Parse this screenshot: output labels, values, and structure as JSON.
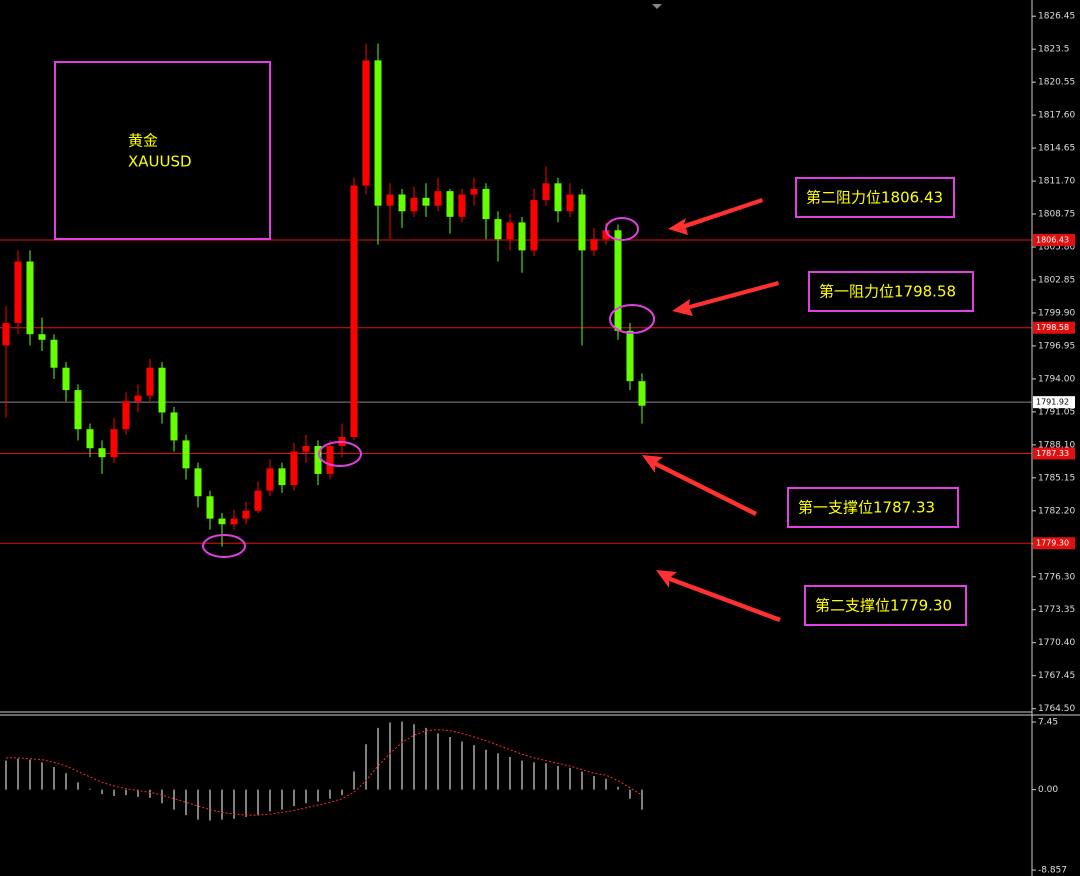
{
  "chart_data": [
    {
      "type": "candlestick",
      "symbol_lines": [
        "黄金",
        "XAUUSD"
      ],
      "up_color": "#ff0000",
      "down_color": "#66ff00",
      "ylim": [
        1764.2,
        1827.9
      ],
      "yticks": [
        1826.45,
        1823.5,
        1820.55,
        {
          "value": 1817.6,
          "label": "1817.60"
        },
        1814.65,
        {
          "value": 1811.7,
          "label": "1811.70"
        },
        1808.75,
        {
          "value": 1805.8,
          "label": "1805.80"
        },
        1802.85,
        {
          "value": 1799.9,
          "label": "1799.90"
        },
        1796.95,
        {
          "value": 1794,
          "label": "1794.00"
        },
        1791.05,
        {
          "value": 1788.1,
          "label": "1788.10"
        },
        1785.15,
        {
          "value": 1782.2,
          "label": "1782.20"
        },
        1779.25,
        {
          "value": 1776.3,
          "label": "1776.30"
        },
        1773.35,
        {
          "value": 1770.4,
          "label": "1770.40"
        },
        1767.45,
        {
          "value": 1764.5,
          "label": "1764.50"
        }
      ],
      "last_price": 1791.92,
      "levels": [
        {
          "value": 1806.43,
          "label": "1806.43",
          "note": "第二阻力位1806.43"
        },
        {
          "value": 1798.58,
          "label": "1798.58",
          "note": "第一阻力位1798.58"
        },
        {
          "value": 1787.33,
          "label": "1787.33",
          "note": "第一支撑位1787.33"
        },
        {
          "value": 1779.3,
          "label": "1779.30",
          "note": "第二支撑位1779.30"
        }
      ],
      "candles": [
        [
          1797.0,
          1800.5,
          1790.5,
          1799.0
        ],
        [
          1799.0,
          1805.5,
          1798.0,
          1804.5
        ],
        [
          1804.5,
          1805.5,
          1797.0,
          1798.0
        ],
        [
          1798.0,
          1799.5,
          1796.5,
          1797.5
        ],
        [
          1797.5,
          1798.0,
          1794.0,
          1795.0
        ],
        [
          1795.0,
          1795.5,
          1792.0,
          1793.0
        ],
        [
          1793.0,
          1793.5,
          1788.5,
          1789.5
        ],
        [
          1789.5,
          1790.0,
          1787.0,
          1787.8
        ],
        [
          1787.8,
          1788.5,
          1785.5,
          1787.0
        ],
        [
          1787.0,
          1790.5,
          1786.5,
          1789.5
        ],
        [
          1789.5,
          1792.8,
          1789.0,
          1792.0
        ],
        [
          1792.0,
          1793.5,
          1791.0,
          1792.5
        ],
        [
          1792.5,
          1795.8,
          1792.0,
          1795.0
        ],
        [
          1795.0,
          1795.5,
          1790.0,
          1791.0
        ],
        [
          1791.0,
          1791.5,
          1787.5,
          1788.5
        ],
        [
          1788.5,
          1789.0,
          1785.0,
          1786.0
        ],
        [
          1786.0,
          1786.5,
          1782.5,
          1783.5
        ],
        [
          1783.5,
          1784.0,
          1780.5,
          1781.5
        ],
        [
          1781.5,
          1782.0,
          1779.0,
          1781.0
        ],
        [
          1781.0,
          1782.3,
          1780.5,
          1781.5
        ],
        [
          1781.5,
          1783.0,
          1781.0,
          1782.2
        ],
        [
          1782.2,
          1784.8,
          1782.0,
          1784.0
        ],
        [
          1784.0,
          1786.8,
          1783.5,
          1786.0
        ],
        [
          1786.0,
          1786.5,
          1783.8,
          1784.5
        ],
        [
          1784.5,
          1788.3,
          1784.0,
          1787.5
        ],
        [
          1787.5,
          1789.0,
          1786.5,
          1788.0
        ],
        [
          1788.0,
          1788.5,
          1784.5,
          1785.5
        ],
        [
          1785.5,
          1788.5,
          1785.0,
          1788.0
        ],
        [
          1788.0,
          1790.0,
          1787.0,
          1788.8
        ],
        [
          1788.8,
          1812.0,
          1788.5,
          1811.3
        ],
        [
          1811.3,
          1824.0,
          1810.5,
          1822.5
        ],
        [
          1822.5,
          1824.0,
          1806.0,
          1809.5
        ],
        [
          1809.5,
          1811.5,
          1806.5,
          1810.5
        ],
        [
          1810.5,
          1811.0,
          1807.5,
          1809.0
        ],
        [
          1809.0,
          1811.2,
          1808.5,
          1810.2
        ],
        [
          1810.2,
          1811.5,
          1808.5,
          1809.5
        ],
        [
          1809.5,
          1812.0,
          1809.0,
          1810.8
        ],
        [
          1810.8,
          1811.0,
          1807.0,
          1808.5
        ],
        [
          1808.5,
          1811.0,
          1808.0,
          1810.5
        ],
        [
          1810.5,
          1812.0,
          1809.5,
          1811.0
        ],
        [
          1811.0,
          1811.5,
          1806.5,
          1808.3
        ],
        [
          1808.3,
          1809.0,
          1804.5,
          1806.5
        ],
        [
          1806.5,
          1808.8,
          1805.5,
          1808.0
        ],
        [
          1808.0,
          1808.5,
          1803.5,
          1805.5
        ],
        [
          1805.5,
          1811.0,
          1805.0,
          1810.0
        ],
        [
          1810.0,
          1813.0,
          1809.5,
          1811.5
        ],
        [
          1811.5,
          1812.0,
          1808.0,
          1809.0
        ],
        [
          1809.0,
          1811.5,
          1808.5,
          1810.5
        ],
        [
          1810.5,
          1811.0,
          1797.0,
          1805.5
        ],
        [
          1805.5,
          1807.5,
          1805.0,
          1806.5
        ],
        [
          1806.5,
          1808.0,
          1806.0,
          1807.3
        ],
        [
          1807.3,
          1807.8,
          1797.5,
          1798.3
        ],
        [
          1798.3,
          1799.0,
          1793.0,
          1793.8
        ],
        [
          1793.8,
          1794.5,
          1790.0,
          1791.6
        ]
      ]
    },
    {
      "type": "macd",
      "ylim": [
        -9.51,
        8.22
      ],
      "yticks": [
        7.45,
        {
          "value": 0,
          "label": "0.00"
        },
        -8.857
      ],
      "series": [
        {
          "color": "#ffffff",
          "values": [
            3.2,
            3.4,
            3.3,
            3.0,
            2.5,
            1.8,
            0.8,
            0.1,
            -0.5,
            -0.7,
            -0.6,
            -0.8,
            -0.9,
            -1.5,
            -2.2,
            -2.8,
            -3.3,
            -3.4,
            -3.3,
            -3.2,
            -3.0,
            -2.8,
            -2.4,
            -2.2,
            -1.8,
            -1.5,
            -1.3,
            -1.0,
            -0.6,
            2.0,
            5.0,
            6.8,
            7.4,
            7.5,
            7.2,
            6.8,
            6.2,
            5.8,
            5.3,
            4.9,
            4.4,
            4.0,
            3.6,
            3.2,
            3.0,
            2.9,
            2.6,
            2.4,
            2.0,
            1.5,
            1.2,
            0.3,
            -1.0,
            -2.2
          ]
        },
        {
          "color": "#ff2a2a",
          "values": [
            3.5,
            3.5,
            3.4,
            3.3,
            3.0,
            2.6,
            2.0,
            1.4,
            0.8,
            0.4,
            0.1,
            -0.1,
            -0.3,
            -0.6,
            -1.0,
            -1.4,
            -1.8,
            -2.2,
            -2.5,
            -2.7,
            -2.8,
            -2.8,
            -2.7,
            -2.5,
            -2.3,
            -2.0,
            -1.7,
            -1.4,
            -1.0,
            -0.3,
            1.0,
            2.6,
            4.0,
            5.2,
            6.0,
            6.5,
            6.6,
            6.5,
            6.2,
            5.8,
            5.4,
            4.9,
            4.4,
            3.9,
            3.5,
            3.2,
            2.9,
            2.6,
            2.2,
            1.8,
            1.6,
            1.0,
            0.2,
            -0.6
          ]
        }
      ]
    }
  ]
}
